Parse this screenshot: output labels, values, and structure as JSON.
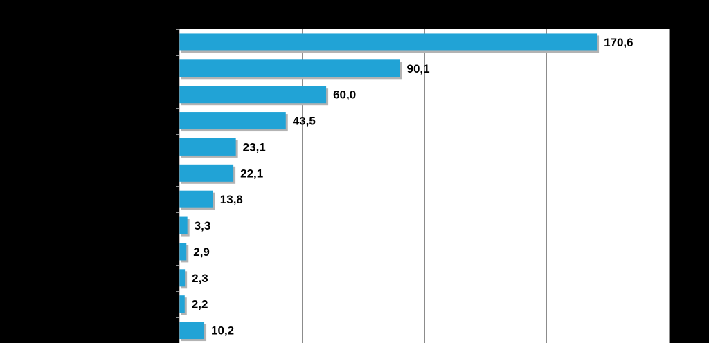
{
  "chart_data": {
    "type": "bar",
    "orientation": "horizontal",
    "title": "",
    "xlabel": "",
    "ylabel": "",
    "categories": [
      "",
      "",
      "",
      "",
      "",
      "",
      "",
      "",
      "",
      "",
      "",
      ""
    ],
    "values": [
      170.6,
      90.1,
      60.0,
      43.5,
      23.1,
      22.1,
      13.8,
      3.3,
      2.9,
      2.3,
      2.2,
      10.2
    ],
    "value_labels": [
      "170,6",
      "90,1",
      "60,0",
      "43,5",
      "23,1",
      "22,1",
      "13,8",
      "3,3",
      "2,9",
      "2,3",
      "2,2",
      "10,2"
    ],
    "xlim": [
      0,
      200
    ],
    "grid": true,
    "legend": "none",
    "colors": {
      "background": "#000000",
      "plot_background": "#ffffff",
      "bar": "#21a3d6",
      "bar_shadow": "#b3b3b3",
      "grid": "#8c8c8c",
      "label": "#000000"
    }
  }
}
